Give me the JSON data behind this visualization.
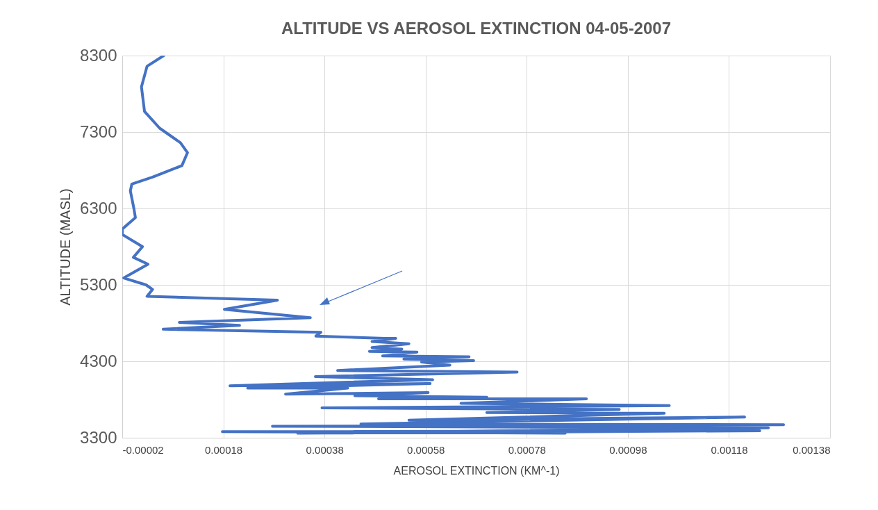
{
  "chart_data": {
    "type": "line",
    "title": "ALTITUDE VS AEROSOL EXTINCTION 04-05-2007",
    "xlabel": "AEROSOL EXTINCTION (KM^-1)",
    "ylabel": "ALTITUDE  (MASL)",
    "xlim": [
      -2e-05,
      0.00138
    ],
    "xticks": [
      {
        "value": -2e-05,
        "label": "-0.00002"
      },
      0.00018,
      0.00038,
      0.00058,
      0.00078,
      0.00098,
      0.00118,
      0.00138
    ],
    "ylim": [
      3300,
      8300
    ],
    "yticks": [
      3300,
      4300,
      5300,
      6300,
      7300,
      8300
    ],
    "grid": true,
    "line_style": "solid",
    "series": [
      {
        "color": "#4472c4",
        "x": [
          6.2e-05,
          2.9e-05,
          1.8e-05,
          2.4e-05,
          5.4e-05,
          9.5e-05,
          0.000109,
          9.8e-05,
          4e-05,
          -1e-06,
          -4e-06,
          3e-06,
          6e-06,
          -2e-05,
          -2e-05,
          2e-05,
          2e-06,
          3.1e-05,
          -1.7e-05,
          2.7e-05,
          4e-05,
          2.9e-05,
          0.000287,
          0.000182,
          0.000352,
          9.3e-05,
          0.000212,
          6.1e-05,
          0.000373,
          0.000363,
          0.0005,
          0.000521,
          0.000474,
          0.000547,
          0.000474,
          0.000533,
          0.000469,
          0.000563,
          0.000495,
          0.000666,
          0.000537,
          0.000675,
          0.000572,
          0.000628,
          0.000406,
          0.000761,
          0.000362,
          0.000594,
          0.000193,
          0.000589,
          0.000228,
          0.000426,
          0.000303,
          0.000585,
          0.00044,
          0.000701,
          0.000487,
          0.000898,
          0.00065,
          0.001062,
          0.000375,
          0.000963,
          0.000701,
          0.001052,
          0.000547,
          0.001211,
          0.000452,
          0.001288,
          0.000277,
          0.001258,
          0.000327,
          0.001241,
          0.000178,
          0.000856
        ],
        "values": [
          8300,
          8160,
          7890,
          7570,
          7350,
          7160,
          7030,
          6860,
          6710,
          6620,
          6530,
          6300,
          6180,
          6030,
          5960,
          5800,
          5660,
          5570,
          5390,
          5300,
          5240,
          5150,
          5100,
          4980,
          4870,
          4810,
          4770,
          4720,
          4680,
          4630,
          4600,
          4600,
          4560,
          4530,
          4480,
          4460,
          4430,
          4420,
          4370,
          4360,
          4330,
          4310,
          4290,
          4250,
          4180,
          4160,
          4100,
          4060,
          3980,
          4010,
          3950,
          3950,
          3870,
          3890,
          3850,
          3830,
          3810,
          3810,
          3750,
          3720,
          3690,
          3670,
          3630,
          3620,
          3530,
          3570,
          3480,
          3470,
          3450,
          3430,
          3360,
          3390,
          3380,
          3360
        ]
      }
    ]
  }
}
